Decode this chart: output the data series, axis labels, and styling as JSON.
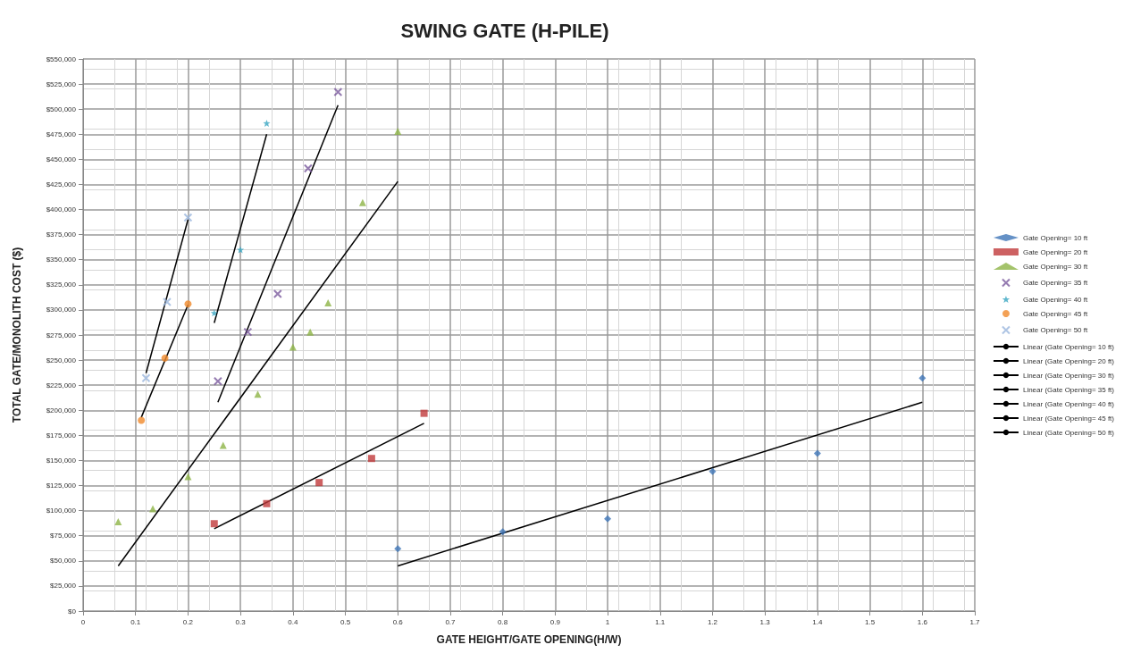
{
  "chart_data": {
    "type": "scatter",
    "title": "SWING GATE (H-PILE)",
    "xlabel": "GATE HEIGHT/GATE OPENING(H/W)",
    "ylabel": "TOTAL GATE/MONOLITH COST ($)",
    "xlim": [
      0,
      1.7
    ],
    "xticks": [
      0,
      0.1,
      0.2,
      0.3,
      0.4,
      0.5,
      0.6,
      0.7,
      0.8,
      0.9,
      1,
      1.1,
      1.2,
      1.3,
      1.4,
      1.5,
      1.6,
      1.7
    ],
    "ylim": [
      0,
      550000
    ],
    "yticks": [
      {
        "value": 0,
        "label": "$0"
      },
      {
        "value": 25000,
        "label": "$25,000"
      },
      {
        "value": 50000,
        "label": "$50,000"
      },
      {
        "value": 75000,
        "label": "$75,000"
      },
      {
        "value": 100000,
        "label": "$100,000"
      },
      {
        "value": 125000,
        "label": "$125,000"
      },
      {
        "value": 150000,
        "label": "$150,000"
      },
      {
        "value": 175000,
        "label": "$175,000"
      },
      {
        "value": 200000,
        "label": "$200,000"
      },
      {
        "value": 225000,
        "label": "$225,000"
      },
      {
        "value": 250000,
        "label": "$250,000"
      },
      {
        "value": 275000,
        "label": "$275,000"
      },
      {
        "value": 300000,
        "label": "$300,000"
      },
      {
        "value": 325000,
        "label": "$325,000"
      },
      {
        "value": 350000,
        "label": "$350,000"
      },
      {
        "value": 375000,
        "label": "$375,000"
      },
      {
        "value": 400000,
        "label": "$400,000"
      },
      {
        "value": 425000,
        "label": "$425,000"
      },
      {
        "value": 450000,
        "label": "$450,000"
      },
      {
        "value": 475000,
        "label": "$475,000"
      },
      {
        "value": 500000,
        "label": "$500,000"
      },
      {
        "value": 525000,
        "label": "$525,000"
      },
      {
        "value": 550000,
        "label": "$550,000"
      }
    ],
    "grid": true,
    "legend": "right",
    "series": [
      {
        "name": "Gate Opening= 10 ft",
        "marker": "diamond",
        "color": "#3f76b8",
        "x": [
          0.6,
          0.8,
          1,
          1.2,
          1.4,
          1.6
        ],
        "values": [
          62000,
          79000,
          92000,
          139000,
          157000,
          232000
        ]
      },
      {
        "name": "Gate Opening= 20 ft",
        "marker": "square",
        "color": "#c0393b",
        "x": [
          0.25,
          0.35,
          0.45,
          0.55,
          0.65
        ],
        "values": [
          87000,
          107000,
          128000,
          152000,
          197000
        ]
      },
      {
        "name": "Gate Opening= 30 ft",
        "marker": "triangle",
        "color": "#8db446",
        "x": [
          0.067,
          0.133,
          0.2,
          0.267,
          0.333,
          0.4,
          0.433,
          0.467,
          0.533,
          0.6
        ],
        "values": [
          89000,
          102000,
          134000,
          165000,
          216000,
          263000,
          278000,
          307000,
          407000,
          478000
        ]
      },
      {
        "name": "Gate Opening= 35 ft",
        "marker": "cross",
        "color": "#7a5a9e",
        "x": [
          0.257,
          0.314,
          0.371,
          0.429,
          0.486
        ],
        "values": [
          229000,
          278000,
          316000,
          441000,
          517000
        ]
      },
      {
        "name": "Gate Opening= 40 ft",
        "marker": "star",
        "color": "#3aa6c2",
        "x": [
          0.25,
          0.3,
          0.35
        ],
        "values": [
          297000,
          360000,
          486000
        ]
      },
      {
        "name": "Gate Opening= 45 ft",
        "marker": "circle",
        "color": "#f08a2c",
        "x": [
          0.111,
          0.156,
          0.2
        ],
        "values": [
          190000,
          252000,
          306000
        ]
      },
      {
        "name": "Gate Opening= 50 ft",
        "marker": "cross",
        "color": "#9bb6dd",
        "x": [
          0.12,
          0.16,
          0.2
        ],
        "values": [
          232000,
          308000,
          392000
        ]
      },
      {
        "name": "Linear (Gate Opening= 10 ft)",
        "type": "line",
        "color": "#000000",
        "x": [
          0.6,
          1.6
        ],
        "values": [
          45000,
          208000
        ]
      },
      {
        "name": "Linear (Gate Opening= 20 ft)",
        "type": "line",
        "color": "#000000",
        "x": [
          0.25,
          0.65
        ],
        "values": [
          82000,
          187000
        ]
      },
      {
        "name": "Linear (Gate Opening= 30 ft)",
        "type": "line",
        "color": "#000000",
        "x": [
          0.067,
          0.6
        ],
        "values": [
          45000,
          428000
        ]
      },
      {
        "name": "Linear (Gate Opening= 35 ft)",
        "type": "line",
        "color": "#000000",
        "x": [
          0.257,
          0.486
        ],
        "values": [
          208000,
          504000
        ]
      },
      {
        "name": "Linear (Gate Opening= 40 ft)",
        "type": "line",
        "color": "#000000",
        "x": [
          0.25,
          0.35
        ],
        "values": [
          287000,
          475000
        ]
      },
      {
        "name": "Linear (Gate Opening= 45 ft)",
        "type": "line",
        "color": "#000000",
        "x": [
          0.111,
          0.2
        ],
        "values": [
          193000,
          305000
        ]
      },
      {
        "name": "Linear (Gate Opening= 50 ft)",
        "type": "line",
        "color": "#000000",
        "x": [
          0.12,
          0.2
        ],
        "values": [
          237000,
          390000
        ]
      }
    ]
  }
}
